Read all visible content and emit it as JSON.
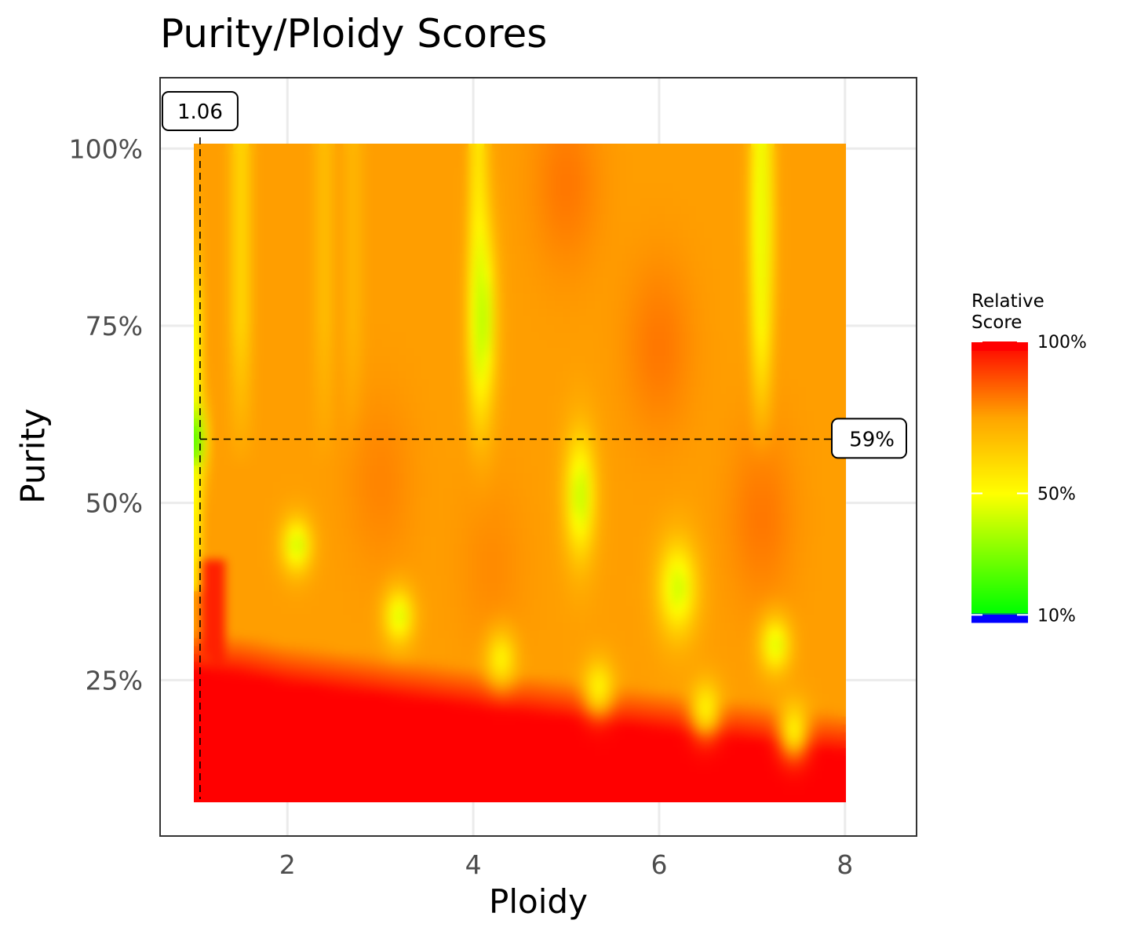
{
  "chart_data": {
    "type": "heatmap",
    "title": "Purity/Ploidy Scores",
    "xlabel": "Ploidy",
    "ylabel": "Purity",
    "xlim": [
      0.63,
      8.77
    ],
    "ylim": [
      0.03,
      1.1
    ],
    "x_range": [
      1.0,
      8.0
    ],
    "y_range": [
      0.08,
      1.0
    ],
    "x_ticks": [
      2,
      4,
      6,
      8
    ],
    "x_tick_labels": [
      "2",
      "4",
      "6",
      "8"
    ],
    "y_ticks": [
      0.25,
      0.5,
      0.75,
      1.0
    ],
    "y_tick_labels": [
      "25%",
      "50%",
      "75%",
      "100%"
    ],
    "grid": true,
    "colorscale": [
      {
        "value": 0.1,
        "color": "#0000ff"
      },
      {
        "value": 0.11,
        "color": "#00ff00"
      },
      {
        "value": 0.5,
        "color": "#ffff00"
      },
      {
        "value": 0.75,
        "color": "#ffa500"
      },
      {
        "value": 1.0,
        "color": "#ff0000"
      }
    ],
    "low_score_features": [
      {
        "ploidy": 1.06,
        "purity": 0.59,
        "score": 0.1
      },
      {
        "ploidy": 1.0,
        "purity": 0.72,
        "score": 0.35
      },
      {
        "ploidy": 2.1,
        "purity": 0.44,
        "score": 0.42
      },
      {
        "ploidy": 3.2,
        "purity": 0.34,
        "score": 0.44
      },
      {
        "ploidy": 4.1,
        "purity": 0.76,
        "score": 0.38
      },
      {
        "ploidy": 4.3,
        "purity": 0.28,
        "score": 0.52
      },
      {
        "ploidy": 5.15,
        "purity": 0.51,
        "score": 0.4
      },
      {
        "ploidy": 5.35,
        "purity": 0.24,
        "score": 0.52
      },
      {
        "ploidy": 6.2,
        "purity": 0.38,
        "score": 0.42
      },
      {
        "ploidy": 6.5,
        "purity": 0.21,
        "score": 0.52
      },
      {
        "ploidy": 7.25,
        "purity": 0.3,
        "score": 0.44
      },
      {
        "ploidy": 7.1,
        "purity": 0.9,
        "score": 0.46
      },
      {
        "ploidy": 7.45,
        "purity": 0.18,
        "score": 0.52
      }
    ],
    "high_score_region": "purity below ~0.25 and near ploidy 1.0",
    "best_fit": {
      "ploidy": 1.06,
      "purity": 0.59,
      "ploidy_label": "1.06",
      "purity_label": "59%"
    },
    "legend": {
      "title_line1": "Relative",
      "title_line2": "Score",
      "labels": [
        "100%",
        "50%",
        "10%"
      ],
      "position": "right"
    }
  }
}
